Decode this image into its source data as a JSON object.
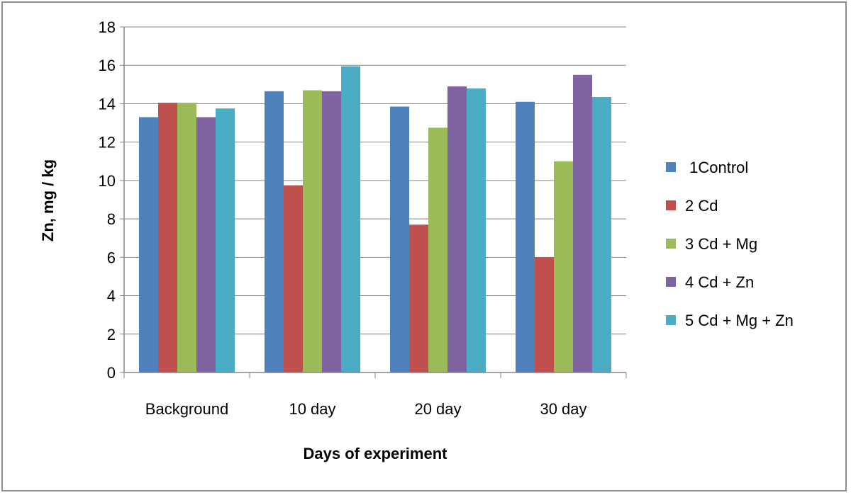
{
  "chart_data": {
    "type": "bar",
    "categories": [
      "Background",
      "10 day",
      "20 day",
      "30 day"
    ],
    "series": [
      {
        "name": " 1Control",
        "color": "#4f81bd",
        "values": [
          13.3,
          14.65,
          13.85,
          14.1
        ]
      },
      {
        "name": "2 Cd",
        "color": "#c0504d",
        "values": [
          14.05,
          9.75,
          7.7,
          6.0
        ]
      },
      {
        "name": "3 Cd + Mg",
        "color": "#9bbb59",
        "values": [
          14.05,
          14.7,
          12.75,
          11.0
        ]
      },
      {
        "name": "4 Cd + Zn",
        "color": "#8064a2",
        "values": [
          13.3,
          14.65,
          14.9,
          15.5
        ]
      },
      {
        "name": "5 Cd + Mg + Zn",
        "color": "#4bacc6",
        "values": [
          13.75,
          15.95,
          14.8,
          14.35
        ]
      }
    ],
    "xlabel": "Days of experiment",
    "ylabel": "Zn, mg / kg",
    "ylim": [
      0,
      18
    ],
    "yticks": [
      "0",
      "2",
      "4",
      "6",
      "8",
      "10",
      "12",
      "14",
      "16",
      "18"
    ],
    "grid": true,
    "legend_position": "right"
  }
}
